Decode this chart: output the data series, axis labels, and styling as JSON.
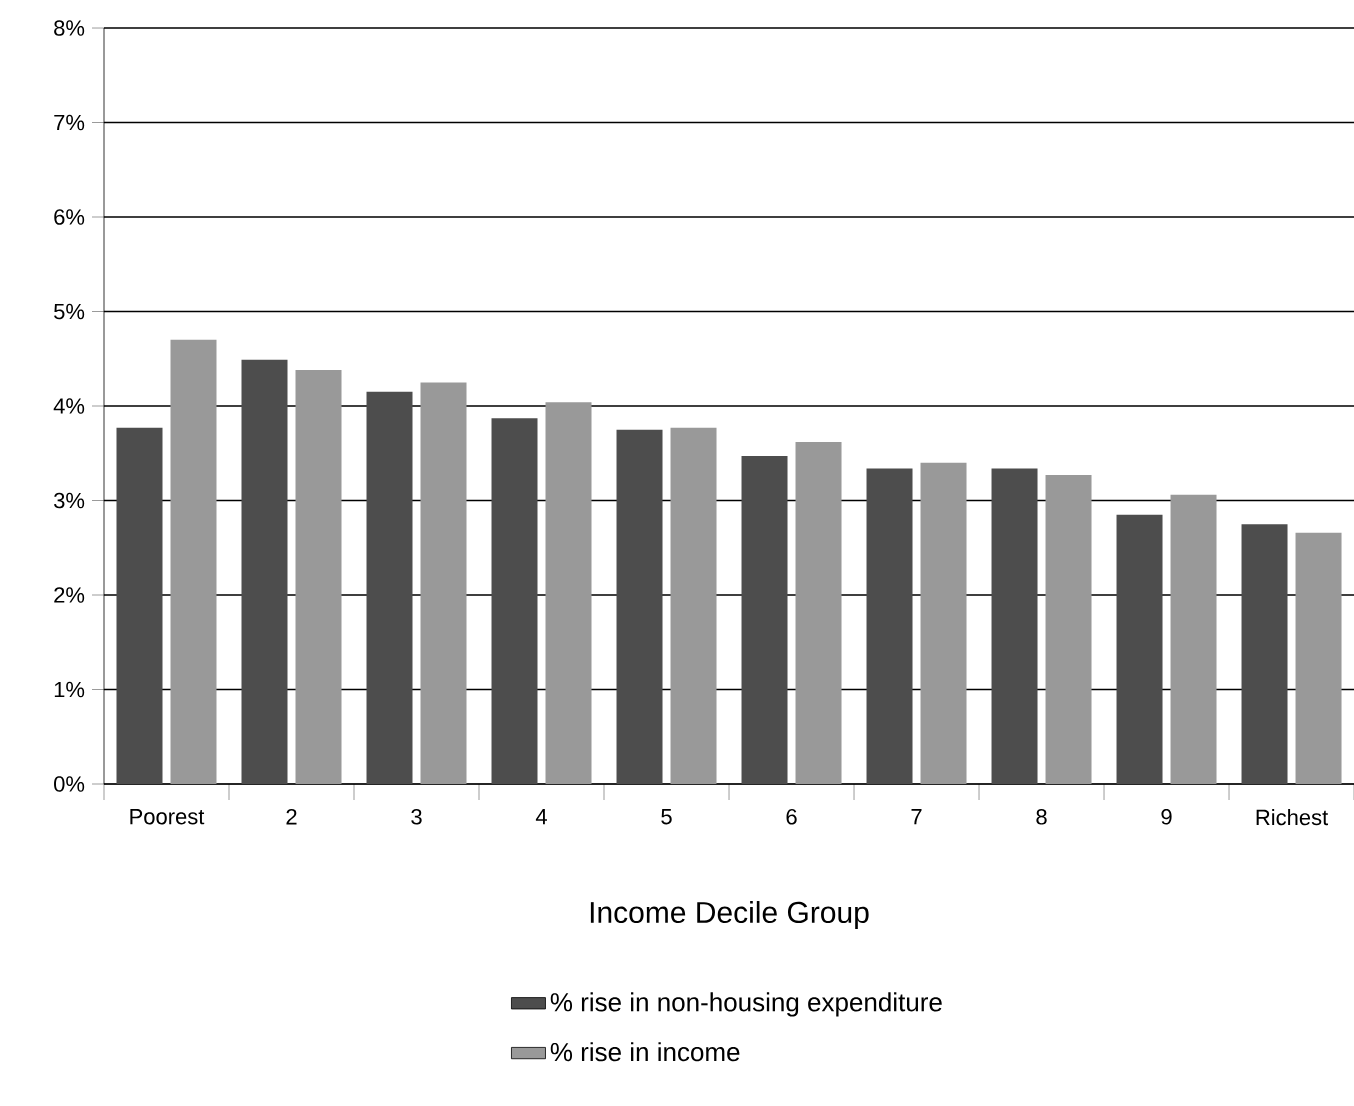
{
  "chart_data": {
    "type": "bar",
    "xlabel": "Income Decile Group",
    "categories": [
      "Poorest",
      "2",
      "3",
      "4",
      "5",
      "6",
      "7",
      "8",
      "9",
      "Richest"
    ],
    "series": [
      {
        "name": "% rise in non-housing expenditure",
        "color": "#4d4d4d",
        "values": [
          3.77,
          4.49,
          4.15,
          3.87,
          3.75,
          3.47,
          3.34,
          3.34,
          2.85,
          2.75
        ]
      },
      {
        "name": "% rise in income",
        "color": "#999999",
        "values": [
          4.7,
          4.38,
          4.25,
          4.04,
          3.77,
          3.62,
          3.4,
          3.27,
          3.06,
          2.66
        ]
      }
    ],
    "ylim": [
      0,
      8
    ],
    "yticks": [
      {
        "value": 0,
        "label": "0%"
      },
      {
        "value": 1,
        "label": "1%"
      },
      {
        "value": 2,
        "label": "2%"
      },
      {
        "value": 3,
        "label": "3%"
      },
      {
        "value": 4,
        "label": "4%"
      },
      {
        "value": 5,
        "label": "5%"
      },
      {
        "value": 6,
        "label": "6%"
      },
      {
        "value": 7,
        "label": "7%"
      },
      {
        "value": 8,
        "label": "8%"
      }
    ],
    "grid": "y",
    "legend": "bottom"
  }
}
